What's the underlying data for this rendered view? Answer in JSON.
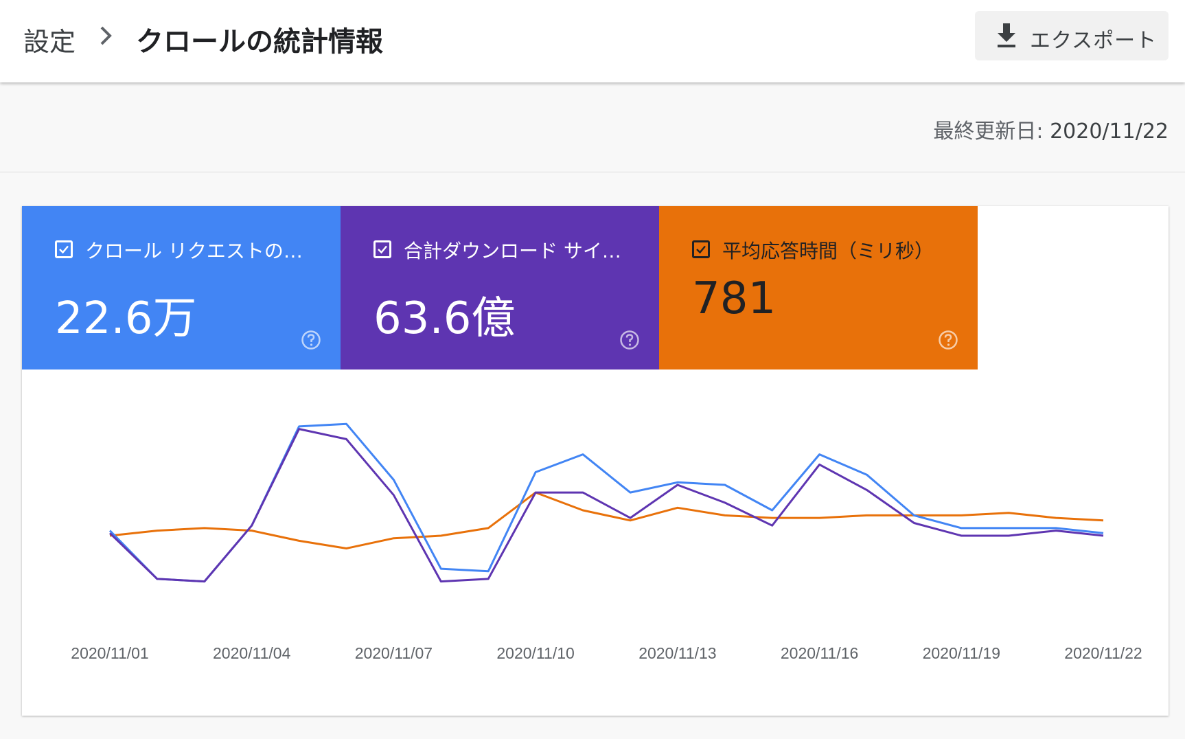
{
  "header": {
    "breadcrumb_root": "設定",
    "breadcrumb_current": "クロールの統計情報",
    "export_label": "エクスポート"
  },
  "updated": {
    "label": "最終更新日:",
    "date": "2020/11/22"
  },
  "metrics": [
    {
      "label": "クロール リクエストの…",
      "value": "22.6万",
      "color": "#4285f4",
      "checked": true
    },
    {
      "label": "合計ダウンロード サイ…",
      "value": "63.6億",
      "color": "#5e35b1",
      "checked": true
    },
    {
      "label": "平均応答時間（ミリ秒）",
      "value": "781",
      "color": "#e8710a",
      "checked": true
    }
  ],
  "icons": {
    "chevron": "chevron-right-icon",
    "export": "download-icon",
    "check": "checkbox-checked-icon",
    "help": "help-circle-icon"
  },
  "chart_data": {
    "type": "line",
    "x_tick_labels": [
      "2020/11/01",
      "2020/11/04",
      "2020/11/07",
      "2020/11/10",
      "2020/11/13",
      "2020/11/16",
      "2020/11/19",
      "2020/11/22"
    ],
    "x": [
      "2020/11/01",
      "2020/11/02",
      "2020/11/03",
      "2020/11/04",
      "2020/11/05",
      "2020/11/06",
      "2020/11/07",
      "2020/11/08",
      "2020/11/09",
      "2020/11/10",
      "2020/11/11",
      "2020/11/12",
      "2020/11/13",
      "2020/11/14",
      "2020/11/15",
      "2020/11/16",
      "2020/11/17",
      "2020/11/18",
      "2020/11/19",
      "2020/11/20",
      "2020/11/21",
      "2020/11/22"
    ],
    "ylim": [
      0,
      1
    ],
    "grid": false,
    "legend": "none",
    "series": [
      {
        "color": "#4285f4",
        "values": [
          0.42,
          0.23,
          0.22,
          0.44,
          0.83,
          0.84,
          0.62,
          0.27,
          0.26,
          0.65,
          0.72,
          0.57,
          0.61,
          0.6,
          0.5,
          0.72,
          0.64,
          0.48,
          0.43,
          0.43,
          0.43,
          0.41
        ]
      },
      {
        "color": "#5e35b1",
        "values": [
          0.41,
          0.23,
          0.22,
          0.44,
          0.82,
          0.78,
          0.56,
          0.22,
          0.23,
          0.57,
          0.57,
          0.47,
          0.6,
          0.53,
          0.44,
          0.68,
          0.58,
          0.45,
          0.4,
          0.4,
          0.42,
          0.4
        ]
      },
      {
        "color": "#e8710a",
        "values": [
          0.4,
          0.42,
          0.43,
          0.42,
          0.38,
          0.35,
          0.39,
          0.4,
          0.43,
          0.57,
          0.5,
          0.46,
          0.51,
          0.48,
          0.47,
          0.47,
          0.48,
          0.48,
          0.48,
          0.49,
          0.47,
          0.46
        ]
      }
    ]
  }
}
